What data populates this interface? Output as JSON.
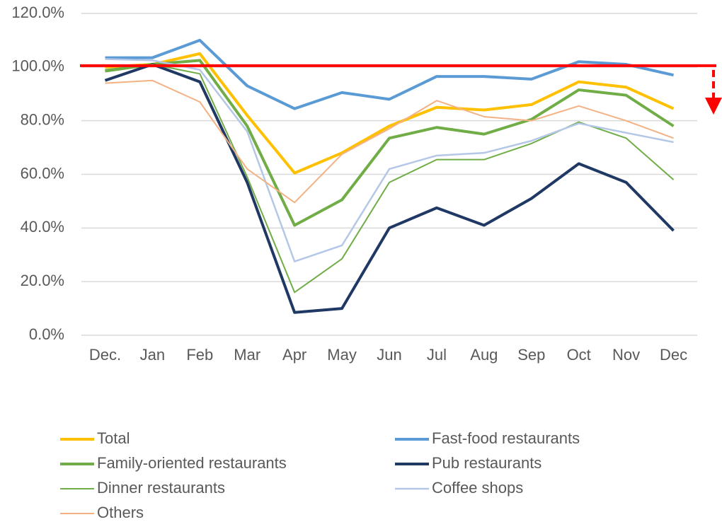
{
  "chart_data": {
    "type": "line",
    "categories": [
      "Dec.",
      "Jan",
      "Feb",
      "Mar",
      "Apr",
      "May",
      "Jun",
      "Jul",
      "Aug",
      "Sep",
      "Oct",
      "Nov",
      "Dec"
    ],
    "ylim": [
      0,
      120
    ],
    "yticks": [
      {
        "value": 0,
        "label": "0.0%"
      },
      {
        "value": 20,
        "label": "20.0%"
      },
      {
        "value": 40,
        "label": "40.0%"
      },
      {
        "value": 60,
        "label": "60.0%"
      },
      {
        "value": 80,
        "label": "80.0%"
      },
      {
        "value": 100,
        "label": "100.0%"
      },
      {
        "value": 120,
        "label": "120.0%"
      }
    ],
    "grid": true,
    "reference_line": {
      "value": 100,
      "color": "#ff0000"
    },
    "series": [
      {
        "name": "Total",
        "color": "#ffc000",
        "line_width": 4,
        "values": [
          100,
          101,
          105,
          82,
          60.5,
          68,
          78,
          85,
          84,
          86,
          94.5,
          92.5,
          84.5
        ]
      },
      {
        "name": "Fast-food restaurants",
        "color": "#5b9bd5",
        "line_width": 4,
        "values": [
          103.5,
          103.5,
          110,
          93,
          84.5,
          90.5,
          88,
          96.5,
          96.5,
          95.5,
          102,
          101,
          97
        ]
      },
      {
        "name": "Family-oriented restaurants",
        "color": "#70ad47",
        "line_width": 4,
        "values": [
          98.5,
          101,
          102.5,
          78,
          41,
          50.5,
          73.5,
          77.5,
          75,
          80.5,
          91.5,
          89.5,
          78
        ]
      },
      {
        "name": "Pub restaurants",
        "color": "#203864",
        "line_width": 4,
        "values": [
          95,
          101,
          94.5,
          57,
          8.5,
          10,
          40,
          47.5,
          41,
          51,
          64,
          57,
          39
        ]
      },
      {
        "name": "Dinner restaurants",
        "color": "#70ad47",
        "line_width": 2,
        "values": [
          99,
          101,
          97.5,
          59,
          16,
          28.5,
          57,
          65.5,
          65.5,
          71.5,
          79.5,
          73.5,
          58
        ]
      },
      {
        "name": "Coffee shops",
        "color": "#b4c7e7",
        "line_width": 2.5,
        "values": [
          103,
          102.5,
          99,
          76,
          27.5,
          33.5,
          62,
          67,
          68,
          72.5,
          79,
          75.5,
          72
        ]
      },
      {
        "name": "Others",
        "color": "#f4b183",
        "line_width": 2,
        "values": [
          94,
          95,
          87,
          62,
          49.5,
          67.5,
          77,
          87.5,
          81.5,
          80,
          85.5,
          80,
          73.5
        ]
      }
    ]
  }
}
